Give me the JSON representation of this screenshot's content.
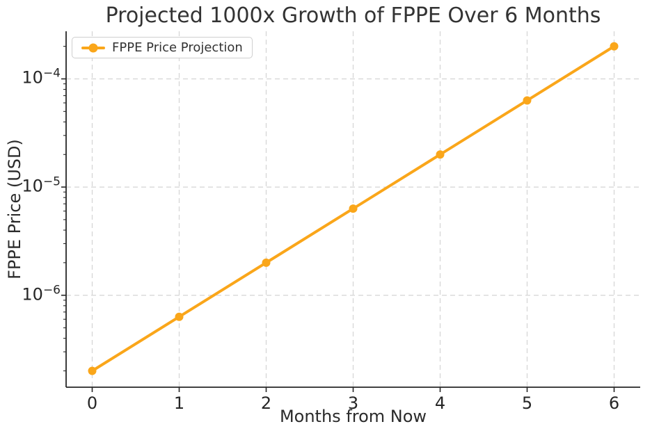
{
  "chart_data": {
    "type": "line",
    "title": "Projected 1000x Growth of FPPE Over 6 Months",
    "xlabel": "Months from Now",
    "ylabel": "FPPE Price (USD)",
    "yscale": "log",
    "grid": true,
    "legend_position": "upper left",
    "background_color": "#FFFFFF",
    "text_color": "#2B2B2B",
    "grid_color": "#D4D4D4",
    "spine_color": "#262626",
    "x": [
      0,
      1,
      2,
      3,
      4,
      5,
      6
    ],
    "x_tick_labels": [
      "0",
      "1",
      "2",
      "3",
      "4",
      "5",
      "6"
    ],
    "y_ticks": [
      {
        "exp": -4,
        "exp_label": "−4",
        "label": "10⁻⁴"
      },
      {
        "exp": -5,
        "exp_label": "−5",
        "label": "10⁻⁵"
      },
      {
        "exp": -6,
        "exp_label": "−6",
        "label": "10⁻⁶"
      }
    ],
    "xlim": [
      -0.3,
      6.3
    ],
    "ylim_exp": [
      -6.85,
      -3.56
    ],
    "series": [
      {
        "name": "FPPE Price Projection",
        "color": "#FAA61A",
        "marker": "circle",
        "values": [
          2e-07,
          6.32e-07,
          2e-06,
          6.32e-06,
          2e-05,
          6.32e-05,
          0.0002
        ]
      }
    ]
  }
}
